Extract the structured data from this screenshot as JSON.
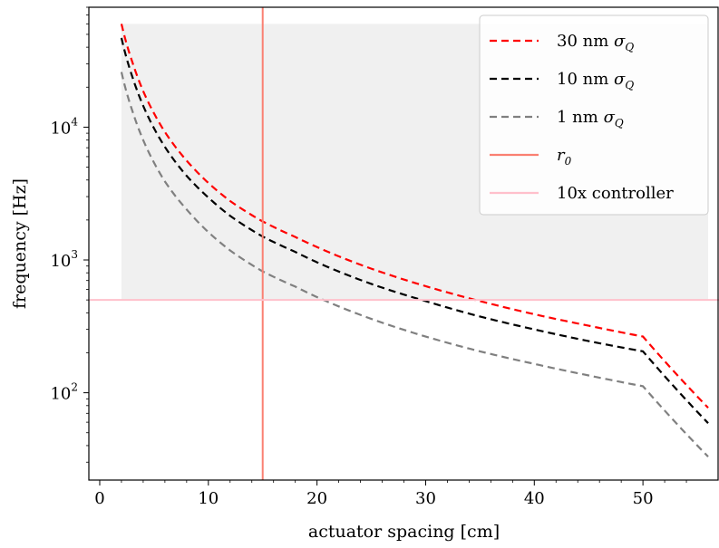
{
  "chart_data": {
    "type": "line",
    "xlabel": "actuator spacing [cm]",
    "ylabel": "frequency [Hz]",
    "xlim": [
      -1,
      57
    ],
    "ylim": [
      22,
      80000
    ],
    "yscale": "log",
    "x_ticks": [
      0,
      10,
      20,
      30,
      40,
      50
    ],
    "x_tick_labels": [
      "0",
      "10",
      "20",
      "30",
      "40",
      "50"
    ],
    "y_ticks": [
      100,
      1000,
      10000
    ],
    "y_tick_labels": [
      {
        "base": "10",
        "exp": "2"
      },
      {
        "base": "10",
        "exp": "3"
      },
      {
        "base": "10",
        "exp": "4"
      }
    ],
    "grid": false,
    "shaded_region": {
      "x": [
        2,
        56
      ],
      "y": [
        500,
        60000
      ],
      "color": "#f0f0f0"
    },
    "series": [
      {
        "name": {
          "main": "30 nm ",
          "sym": "σ",
          "sub": "Q"
        },
        "style": "dashed",
        "color": "#ff0000",
        "x": [
          2,
          3,
          4,
          5,
          6,
          8,
          10,
          12,
          15,
          18,
          20,
          25,
          30,
          35,
          40,
          45,
          50,
          56
        ],
        "y": [
          60000,
          31000,
          18700,
          12700,
          9200,
          5600,
          3800,
          2780,
          1950,
          1490,
          1250,
          860,
          635,
          490,
          390,
          320,
          265,
          77
        ]
      },
      {
        "name": {
          "main": "10 nm ",
          "sym": "σ",
          "sub": "Q"
        },
        "style": "dashed",
        "color": "#000000",
        "x": [
          2,
          3,
          4,
          5,
          6,
          8,
          10,
          12,
          15,
          18,
          20,
          25,
          30,
          35,
          40,
          45,
          50,
          56
        ],
        "y": [
          47000,
          24000,
          14500,
          9800,
          7100,
          4300,
          2950,
          2150,
          1500,
          1150,
          960,
          660,
          490,
          375,
          300,
          245,
          205,
          59
        ]
      },
      {
        "name": {
          "main": "1 nm ",
          "sym": "σ",
          "sub": "Q"
        },
        "style": "dashed",
        "color": "#808080",
        "x": [
          2,
          3,
          4,
          5,
          6,
          8,
          10,
          12,
          15,
          18,
          20,
          25,
          30,
          35,
          40,
          45,
          50,
          56
        ],
        "y": [
          26000,
          13300,
          8000,
          5400,
          3900,
          2400,
          1620,
          1180,
          820,
          630,
          525,
          360,
          265,
          205,
          165,
          135,
          112,
          33
        ]
      }
    ],
    "reference_lines": [
      {
        "name": {
          "main": "",
          "sym": "r",
          "sub": "0"
        },
        "orientation": "vertical",
        "x": 15,
        "color": "#fa8072"
      },
      {
        "name": {
          "main": "10x controller",
          "sym": "",
          "sub": ""
        },
        "orientation": "horizontal",
        "y": 500,
        "color": "#ffc0cb"
      }
    ],
    "legend_placement": "top-right"
  }
}
